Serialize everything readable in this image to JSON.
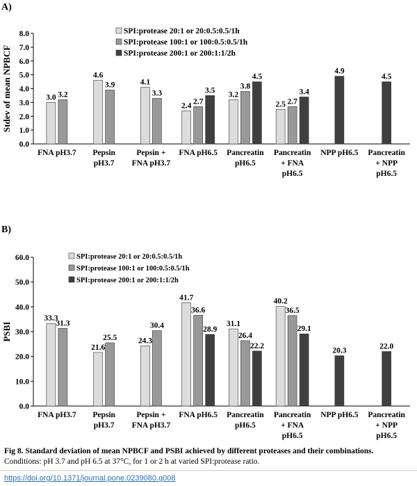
{
  "figure": {
    "caption_title": "Fig 8. Standard deviation of mean NPBCF and PSBI achieved by different proteases and their combinations.",
    "caption_text": "Conditions: pH 3.7 and pH 6.5 at 37°C, for 1 or 2 h at varied SPI:protease ratio.",
    "doi": "https://doi.org/10.1371/journal.pone.0239080.g008"
  },
  "colors": {
    "s1": "#dcdcdc",
    "s2": "#999999",
    "s3": "#3f3f3f"
  },
  "chart_data": [
    {
      "panel": "A)",
      "type": "bar",
      "title": "",
      "ylabel": "Stdev of mean NPBCF",
      "xlabel": "",
      "ylim": [
        0,
        8
      ],
      "yticks": [
        "0.0",
        "1.0",
        "2.0",
        "3.0",
        "4.0",
        "5.0",
        "6.0",
        "7.0",
        "8.0"
      ],
      "grid": false,
      "legend_position": "top-center",
      "categories": [
        [
          "FNA pH3.7"
        ],
        [
          "Pepsin",
          "pH3.7"
        ],
        [
          "Pepsin +",
          "FNA pH3.7"
        ],
        [
          "FNA pH6.5"
        ],
        [
          "Pancreatin",
          "pH6.5"
        ],
        [
          "Pancreatin",
          "+ FNA",
          "pH6.5"
        ],
        [
          "NPP pH6.5"
        ],
        [
          "Pancreatin",
          "+ NPP",
          "pH6.5"
        ]
      ],
      "series": [
        {
          "name": "SPI:protease 20:1 or 20:0.5:0.5/1h",
          "values": [
            3.0,
            4.6,
            4.1,
            2.4,
            3.2,
            2.5,
            null,
            null
          ]
        },
        {
          "name": "SPI:protease 100:1 or 100:0.5:0.5/1h",
          "values": [
            3.2,
            3.9,
            3.3,
            2.7,
            3.8,
            2.7,
            null,
            null
          ]
        },
        {
          "name": "SPI:protease 200:1 or 200:1:1/2h",
          "values": [
            null,
            null,
            null,
            3.5,
            4.5,
            3.4,
            4.9,
            4.5
          ]
        }
      ]
    },
    {
      "panel": "B)",
      "type": "bar",
      "title": "",
      "ylabel": "PSBI",
      "xlabel": "",
      "ylim": [
        0,
        60
      ],
      "yticks": [
        "0.0",
        "10.0",
        "20.0",
        "30.0",
        "40.0",
        "50.0",
        "60.0"
      ],
      "grid": false,
      "legend_position": "top-left",
      "categories": [
        [
          "FNA pH3.7"
        ],
        [
          "Pepsin",
          "pH3.7"
        ],
        [
          "Pepsin +",
          "FNA pH3.7"
        ],
        [
          "FNA pH6.5"
        ],
        [
          "Pancreatin",
          "pH6.5"
        ],
        [
          "Pancreatin",
          "+ FNA",
          "pH6.5"
        ],
        [
          "NPP pH6.5"
        ],
        [
          "Pancreatin",
          "+ NPP",
          "pH6.5"
        ]
      ],
      "series": [
        {
          "name": "SPI:protease 20:1 or 20:0.5:0.5/1h",
          "values": [
            33.3,
            21.6,
            24.3,
            41.7,
            31.1,
            40.2,
            null,
            null
          ]
        },
        {
          "name": "SPI:protease 100:1 or 100:0.5:0.5/1h",
          "values": [
            31.3,
            25.5,
            30.4,
            36.6,
            26.4,
            36.5,
            null,
            null
          ]
        },
        {
          "name": "SPI:protease 200:1 or 200:1:1/2h",
          "values": [
            null,
            null,
            null,
            28.9,
            22.2,
            29.1,
            20.3,
            22.0
          ]
        }
      ]
    }
  ]
}
